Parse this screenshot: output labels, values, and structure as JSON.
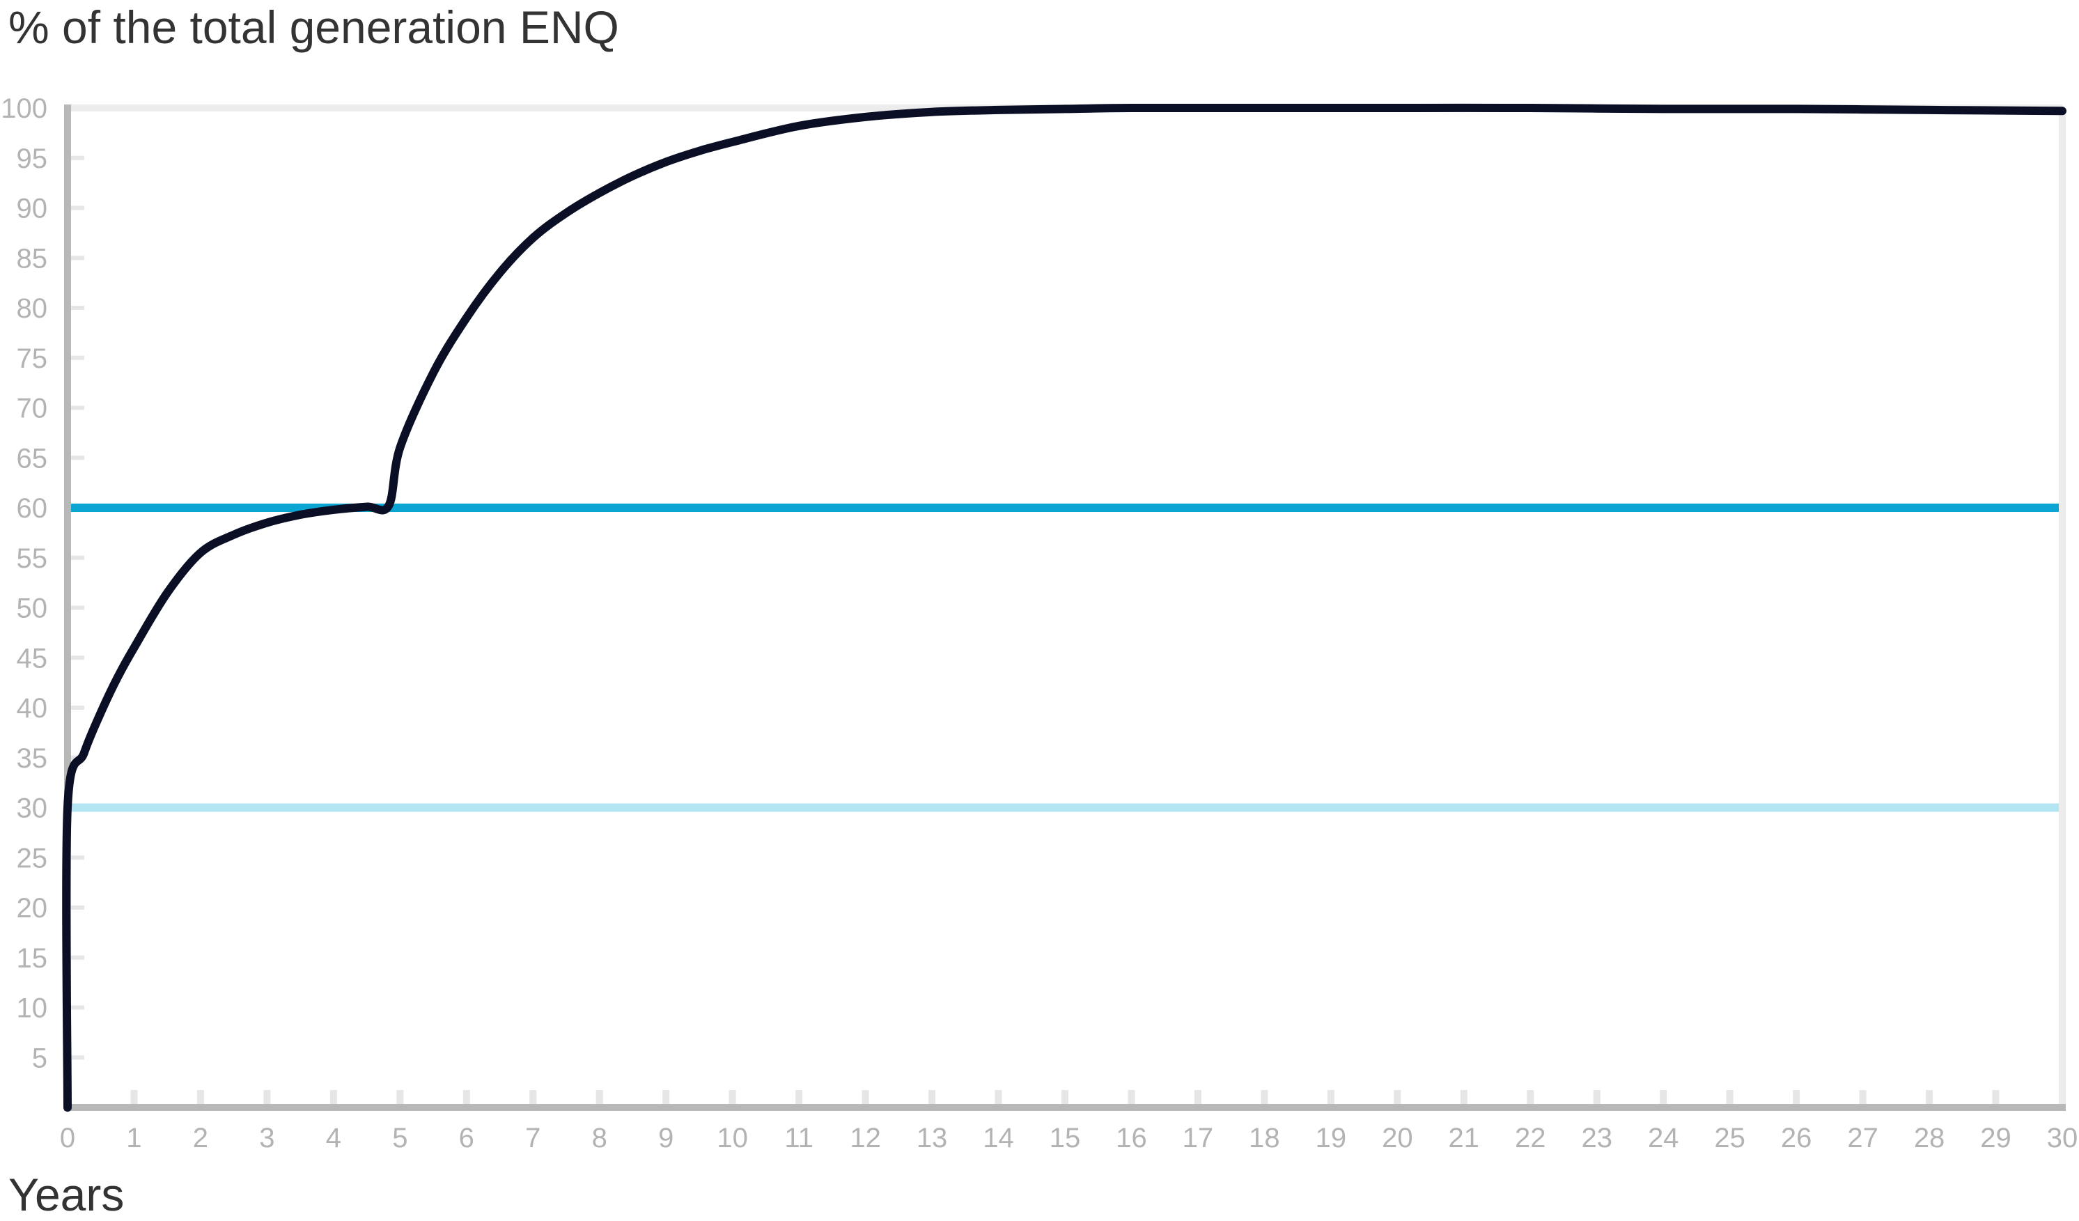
{
  "chart_data": {
    "type": "line",
    "title": "",
    "ylabel": "% of the total generation ENQ",
    "xlabel": "Years",
    "xlim": [
      0,
      30
    ],
    "ylim": [
      0,
      100
    ],
    "x_ticks": [
      0,
      1,
      2,
      3,
      4,
      5,
      6,
      7,
      8,
      9,
      10,
      11,
      12,
      13,
      14,
      15,
      16,
      17,
      18,
      19,
      20,
      21,
      22,
      23,
      24,
      25,
      26,
      27,
      28,
      29,
      30
    ],
    "y_ticks": [
      5,
      10,
      15,
      20,
      25,
      30,
      35,
      40,
      45,
      50,
      55,
      60,
      65,
      70,
      75,
      80,
      85,
      90,
      95,
      100
    ],
    "grid": false,
    "reference_lines": [
      {
        "y": 30,
        "color": "#b3e5f2"
      },
      {
        "y": 60,
        "color": "#0aa5d2"
      }
    ],
    "series": [
      {
        "color": "#0a0f26",
        "x": [
          0,
          0,
          0.25,
          0.5,
          0.75,
          1,
          1.5,
          2,
          2.5,
          3,
          3.5,
          4,
          4.5,
          4.83,
          5,
          5.5,
          6,
          6.5,
          7,
          7.5,
          8,
          8.5,
          9,
          9.5,
          10,
          11,
          12,
          13,
          14,
          15,
          16,
          18,
          20,
          22,
          24,
          26,
          28,
          30
        ],
        "y": [
          0,
          30,
          35.5,
          39.5,
          43,
          46,
          51.5,
          55.5,
          57.3,
          58.5,
          59.3,
          59.8,
          60.1,
          60.2,
          66,
          73.5,
          79,
          83.5,
          87,
          89.5,
          91.5,
          93.2,
          94.6,
          95.7,
          96.6,
          98.2,
          99.1,
          99.6,
          99.8,
          99.9,
          100,
          100,
          100,
          100,
          99.9,
          99.9,
          99.8,
          99.7
        ]
      }
    ]
  }
}
